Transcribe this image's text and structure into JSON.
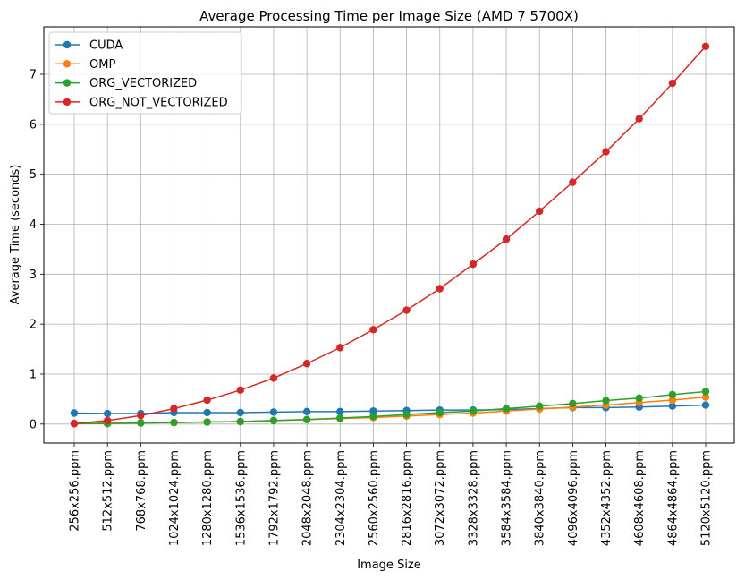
{
  "chart_data": {
    "type": "line",
    "title": "Average Processing Time per Image Size (AMD 7 5700X)",
    "xlabel": "Image Size",
    "ylabel": "Average Time (seconds)",
    "ylim": [
      -0.38,
      7.95
    ],
    "yticks": [
      0,
      1,
      2,
      3,
      4,
      5,
      6,
      7
    ],
    "grid": true,
    "legend_position": "top-left",
    "categories": [
      "256x256.ppm",
      "512x512.ppm",
      "768x768.ppm",
      "1024x1024.ppm",
      "1280x1280.ppm",
      "1536x1536.ppm",
      "1792x1792.ppm",
      "2048x2048.ppm",
      "2304x2304.ppm",
      "2560x2560.ppm",
      "2816x2816.ppm",
      "3072x3072.ppm",
      "3328x3328.ppm",
      "3584x3584.ppm",
      "3840x3840.ppm",
      "4096x4096.ppm",
      "4352x4352.ppm",
      "4608x4608.ppm",
      "4864x4864.ppm",
      "5120x5120.ppm"
    ],
    "series": [
      {
        "name": "CUDA",
        "color": "#1f77b4",
        "values": [
          0.22,
          0.21,
          0.21,
          0.23,
          0.23,
          0.23,
          0.24,
          0.25,
          0.25,
          0.26,
          0.27,
          0.28,
          0.28,
          0.29,
          0.31,
          0.33,
          0.33,
          0.34,
          0.36,
          0.38
        ]
      },
      {
        "name": "OMP",
        "color": "#ff7f0e",
        "values": [
          0.01,
          0.02,
          0.03,
          0.03,
          0.04,
          0.05,
          0.07,
          0.09,
          0.11,
          0.13,
          0.16,
          0.19,
          0.22,
          0.26,
          0.3,
          0.34,
          0.38,
          0.43,
          0.48,
          0.54
        ]
      },
      {
        "name": "ORG_VECTORIZED",
        "color": "#2ca02c",
        "values": [
          0.01,
          0.01,
          0.02,
          0.03,
          0.04,
          0.05,
          0.07,
          0.09,
          0.12,
          0.15,
          0.19,
          0.23,
          0.26,
          0.31,
          0.36,
          0.41,
          0.47,
          0.52,
          0.59,
          0.65
        ]
      },
      {
        "name": "ORG_NOT_VECTORIZED",
        "color": "#d62728",
        "values": [
          0.01,
          0.07,
          0.17,
          0.31,
          0.48,
          0.68,
          0.92,
          1.21,
          1.53,
          1.89,
          2.28,
          2.71,
          3.2,
          3.7,
          4.26,
          4.84,
          5.45,
          6.11,
          6.82,
          7.56
        ]
      }
    ]
  }
}
